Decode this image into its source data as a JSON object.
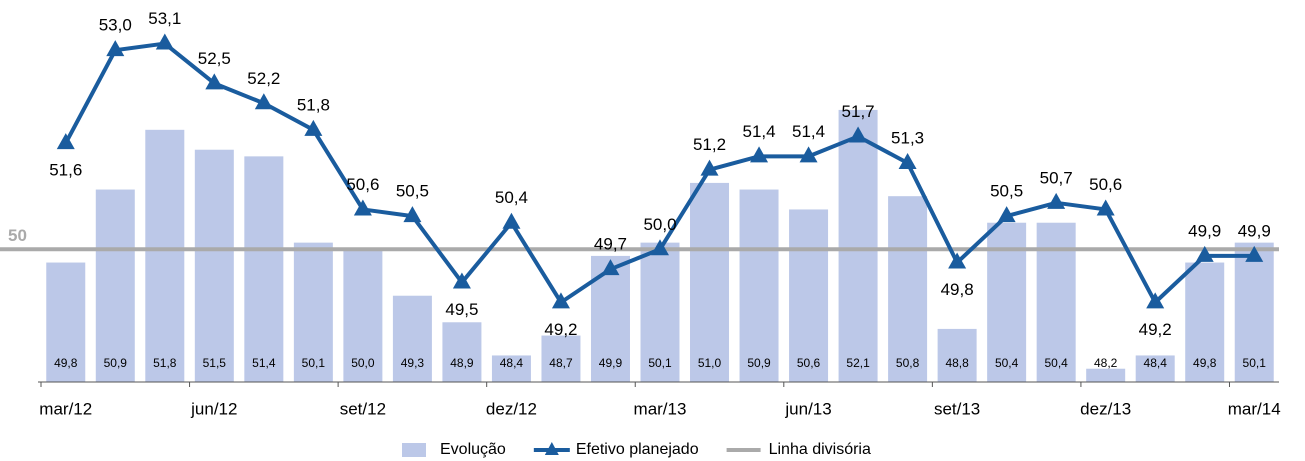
{
  "chart_data": {
    "type": "bar_line",
    "categories": [
      "mar/12",
      null,
      null,
      "jun/12",
      null,
      null,
      "set/12",
      null,
      null,
      "dez/12",
      null,
      null,
      "mar/13",
      null,
      null,
      "jun/13",
      null,
      null,
      "set/13",
      null,
      null,
      "dez/13",
      null,
      null,
      "mar/14"
    ],
    "series": [
      {
        "name": "Evolução",
        "type": "bar",
        "color": "#bcc8e8",
        "values": [
          49.8,
          50.9,
          51.8,
          51.5,
          51.4,
          50.1,
          50.0,
          49.3,
          48.9,
          48.4,
          48.7,
          49.9,
          50.1,
          51.0,
          50.9,
          50.6,
          52.1,
          50.8,
          48.8,
          50.4,
          50.4,
          48.2,
          48.4,
          49.8,
          50.1
        ],
        "value_labels": [
          "49,8",
          "50,9",
          "51,8",
          "51,5",
          "51,4",
          "50,1",
          "50,0",
          "49,3",
          "48,9",
          "48,4",
          "48,7",
          "49,9",
          "50,1",
          "51,0",
          "50,9",
          "50,6",
          "52,1",
          "50,8",
          "48,8",
          "50,4",
          "50,4",
          "48,2",
          "48,4",
          "49,8",
          "50,1"
        ]
      },
      {
        "name": "Efetivo planejado",
        "type": "line",
        "color": "#1a5c9e",
        "values": [
          51.6,
          53.0,
          53.1,
          52.5,
          52.2,
          51.8,
          50.6,
          50.5,
          49.5,
          50.4,
          49.2,
          49.7,
          50.0,
          51.2,
          51.4,
          51.4,
          51.7,
          51.3,
          49.8,
          50.5,
          50.7,
          50.6,
          49.2,
          49.9,
          49.9
        ],
        "value_labels": [
          "51,6",
          "53,0",
          "53,1",
          "52,5",
          "52,2",
          "51,8",
          "50,6",
          "50,5",
          "49,5",
          "50,4",
          "49,2",
          "49,7",
          "50,0",
          "51,2",
          "51,4",
          "51,4",
          "51,7",
          "51,3",
          "49,8",
          "50,5",
          "50,7",
          "50,6",
          "49,2",
          "49,9",
          "49,9"
        ]
      }
    ],
    "reference_line": {
      "name": "Linha divisória",
      "value": 50,
      "color": "#aaaaaa"
    },
    "ylim": [
      48,
      53.5
    ],
    "legend": "bottom"
  }
}
